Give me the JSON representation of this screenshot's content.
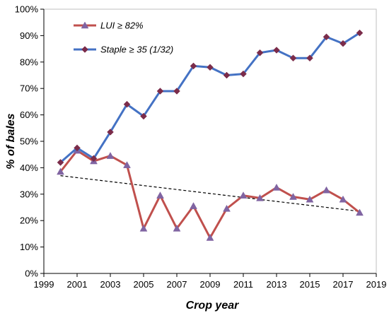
{
  "chart_data": {
    "type": "line",
    "xlabel": "Crop year",
    "ylabel": "% of bales",
    "xlim": [
      1999,
      2019
    ],
    "ylim": [
      0,
      100
    ],
    "x_ticks": [
      "1999",
      "2001",
      "2003",
      "2005",
      "2007",
      "2009",
      "2011",
      "2013",
      "2015",
      "2017",
      "2019"
    ],
    "y_ticks": [
      "0%",
      "10%",
      "20%",
      "30%",
      "40%",
      "50%",
      "60%",
      "70%",
      "80%",
      "90%",
      "100%"
    ],
    "legend_position": "top-left",
    "grid": false,
    "x": [
      2000,
      2001,
      2002,
      2003,
      2004,
      2005,
      2006,
      2007,
      2008,
      2009,
      2010,
      2011,
      2012,
      2013,
      2014,
      2015,
      2016,
      2017,
      2018
    ],
    "series": [
      {
        "name": "LUI ≥ 82%",
        "color": "#c0504d",
        "marker": "triangle",
        "marker_color": "#8064a2",
        "values": [
          38.5,
          46.5,
          42.5,
          44.5,
          41,
          17,
          29.5,
          17,
          25.5,
          13.5,
          24.5,
          29.5,
          28.5,
          32.5,
          29,
          28,
          31.5,
          28,
          23
        ]
      },
      {
        "name": "Staple ≥ 35 (1/32)",
        "color": "#4472c4",
        "marker": "diamond",
        "marker_color": "#7b2c4a",
        "values": [
          42,
          47.5,
          43.5,
          53.5,
          64,
          59.5,
          69,
          69,
          78.5,
          78,
          75,
          75.5,
          83.5,
          84.5,
          81.5,
          81.5,
          89.5,
          87,
          91
        ]
      }
    ],
    "trendline": {
      "series": "LUI ≥ 82%",
      "style": "dashed",
      "color": "#000000",
      "start": [
        2000,
        37
      ],
      "end": [
        2018,
        23.5
      ]
    }
  }
}
